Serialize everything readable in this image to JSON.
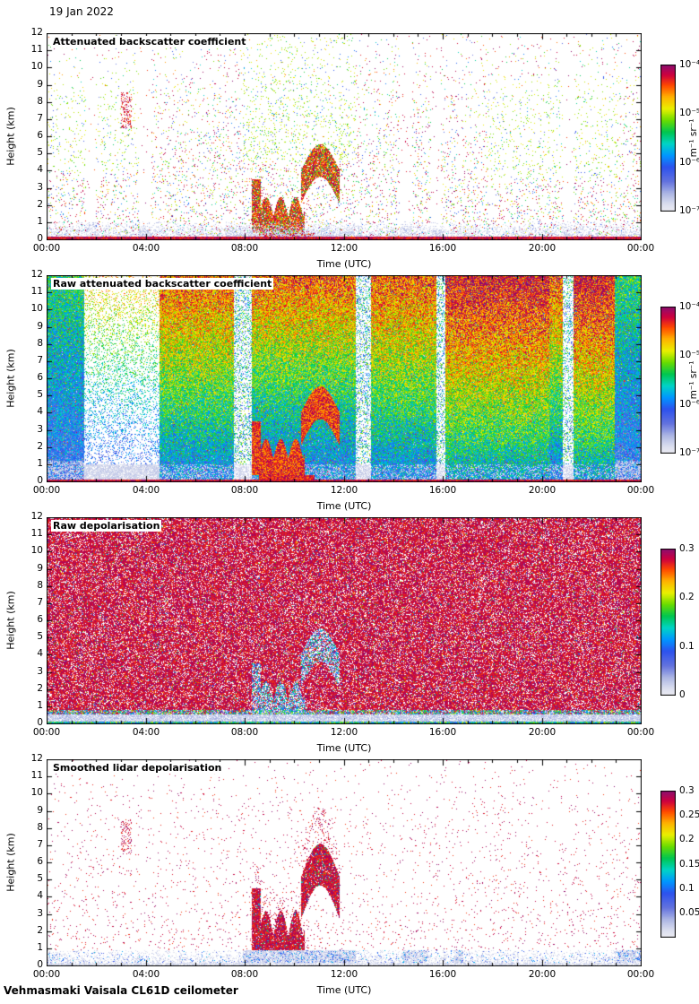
{
  "date_label": "19 Jan 2022",
  "footer": "Vehmasmaki Vaisala CL61D ceilometer",
  "chart_data": [
    {
      "type": "heatmap",
      "title": "Attenuated backscatter coefficient",
      "xlabel": "Time (UTC)",
      "ylabel": "Height (km)",
      "xlim": [
        "00:00",
        "24:00"
      ],
      "ylim": [
        0,
        12
      ],
      "xticks": [
        "00:00",
        "04:00",
        "08:00",
        "12:00",
        "16:00",
        "20:00",
        "00:00"
      ],
      "yticks": [
        0,
        1,
        2,
        3,
        4,
        5,
        6,
        7,
        8,
        9,
        10,
        11,
        12
      ],
      "colorbar": {
        "scale": "log",
        "range_min": 1e-07,
        "range_max": 0.0001,
        "unit": "m⁻¹ sr⁻¹",
        "ticks": [
          {
            "label": "10⁻⁴",
            "pos": 0
          },
          {
            "label": "10⁻⁵",
            "pos": 0.3333
          },
          {
            "label": "10⁻⁶",
            "pos": 0.6667
          },
          {
            "label": "10⁻⁷",
            "pos": 1
          }
        ]
      },
      "features": [
        "Weak surface aerosol layer below ~1 km throughout the day",
        "Strong cloud/fog echoes between 08:00 and 12:30 at 0.5-4.5 km",
        "Sparse random noise speckle at all heights",
        "Brief data gaps near 01:45, 03:50, 14:20, 15:40 and 21:00"
      ]
    },
    {
      "type": "heatmap",
      "title": "Raw attenuated backscatter coefficient",
      "xlabel": "Time (UTC)",
      "ylabel": "Height (km)",
      "xlim": [
        "00:00",
        "24:00"
      ],
      "ylim": [
        0,
        12
      ],
      "xticks": [
        "00:00",
        "04:00",
        "08:00",
        "12:00",
        "16:00",
        "20:00",
        "00:00"
      ],
      "yticks": [
        0,
        1,
        2,
        3,
        4,
        5,
        6,
        7,
        8,
        9,
        10,
        11,
        12
      ],
      "colorbar": {
        "scale": "log",
        "range_min": 1e-07,
        "range_max": 0.0001,
        "unit": "m⁻¹ sr⁻¹",
        "ticks": [
          {
            "label": "10⁻⁴",
            "pos": 0
          },
          {
            "label": "10⁻⁵",
            "pos": 0.3333
          },
          {
            "label": "10⁻⁶",
            "pos": 0.6667
          },
          {
            "label": "10⁻⁷",
            "pos": 1
          }
        ]
      },
      "features": [
        "Dense background noise over the full profile; noise level rises with height",
        "Low-noise period ~01:30-04:30 showing only the surface layer below 1 km",
        "Same cloud band 08:00-12:30 at 0.5-4.5 km with strong returns",
        "White vertical gaps near 07:45, 12:30, 15:45 and 21:00"
      ]
    },
    {
      "type": "heatmap",
      "title": "Raw depolarisation",
      "xlabel": "Time (UTC)",
      "ylabel": "Height (km)",
      "xlim": [
        "00:00",
        "24:00"
      ],
      "ylim": [
        0,
        12
      ],
      "xticks": [
        "00:00",
        "04:00",
        "08:00",
        "12:00",
        "16:00",
        "20:00",
        "00:00"
      ],
      "yticks": [
        0,
        1,
        2,
        3,
        4,
        5,
        6,
        7,
        8,
        9,
        10,
        11,
        12
      ],
      "colorbar": {
        "scale": "linear",
        "range_min": 0,
        "range_max": 0.3,
        "unit": "",
        "ticks": [
          {
            "label": "0.3",
            "pos": 0
          },
          {
            "label": "0.2",
            "pos": 0.3333
          },
          {
            "label": "0.1",
            "pos": 0.6667
          },
          {
            "label": "0",
            "pos": 1
          }
        ]
      },
      "features": [
        "Depolarisation noise ~0.25-0.3 dominates above ~0.8 km",
        "Near-zero depolarisation surface layer below ~0.5 km",
        "Liquid cloud 08:00-12:00 at 1-4.5 km appears as low-depolarisation structures"
      ]
    },
    {
      "type": "heatmap",
      "title": "Smoothed lidar depolarisation",
      "xlabel": "Time (UTC)",
      "ylabel": "Height (km)",
      "xlim": [
        "00:00",
        "24:00"
      ],
      "ylim": [
        0,
        12
      ],
      "xticks": [
        "00:00",
        "04:00",
        "08:00",
        "12:00",
        "16:00",
        "20:00",
        "00:00"
      ],
      "yticks": [
        0,
        1,
        2,
        3,
        4,
        5,
        6,
        7,
        8,
        9,
        10,
        11,
        12
      ],
      "colorbar": {
        "scale": "linear",
        "range_min": 0,
        "range_max": 0.3,
        "unit": "",
        "ticks": [
          {
            "label": "0.3",
            "pos": 0
          },
          {
            "label": "0.25",
            "pos": 0.1667
          },
          {
            "label": "0.2",
            "pos": 0.3333
          },
          {
            "label": "0.15",
            "pos": 0.5
          },
          {
            "label": "0.1",
            "pos": 0.6667
          },
          {
            "label": "0.05",
            "pos": 0.8333
          }
        ]
      },
      "features": [
        "Mostly empty (below detection) after smoothing",
        "High-depolarisation (~0.3) cloud structures 08:00-12:00 between 1 and 5.5 km",
        "Thin low-depolarisation (<0.05) layer below ~1 km all day"
      ]
    }
  ]
}
